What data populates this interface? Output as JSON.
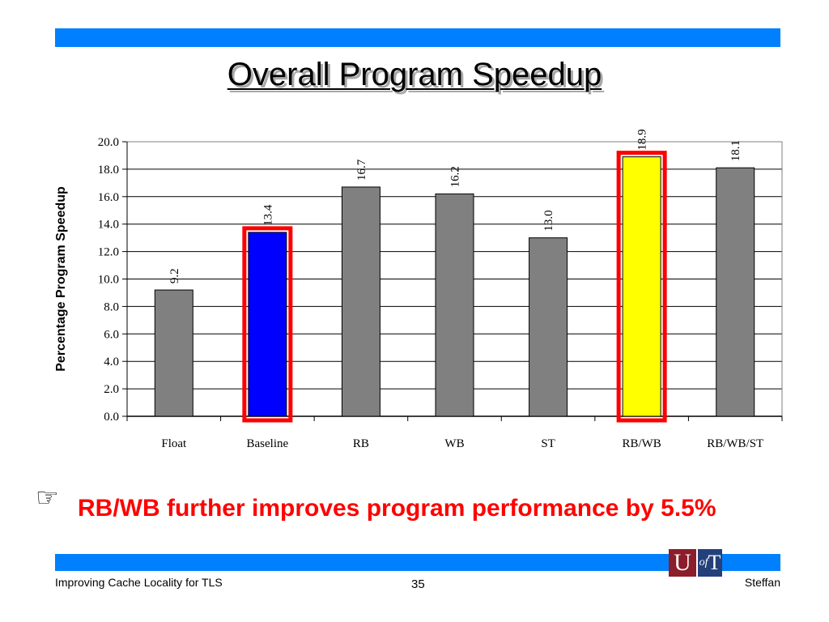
{
  "slide": {
    "title": "Overall Program Speedup",
    "bullet_icon": "pointing-hand-icon",
    "bullet_glyph": "☞",
    "bullet_text": "RB/WB further improves program performance by 5.5%",
    "footer_left": "Improving Cache Locality for TLS",
    "page_number": "35",
    "footer_right": "Steffan",
    "logo": {
      "letter_u": "U",
      "letter_of": "of",
      "letter_t": "T"
    },
    "colors": {
      "bar_accent": "#0080ff",
      "bullet_text": "#ff0000"
    }
  },
  "chart_data": {
    "type": "bar",
    "title": "",
    "xlabel": "",
    "ylabel": "Percentage Program Speedup",
    "ylim": [
      0,
      20
    ],
    "yticks": [
      "0.0",
      "2.0",
      "4.0",
      "6.0",
      "8.0",
      "10.0",
      "12.0",
      "14.0",
      "16.0",
      "18.0",
      "20.0"
    ],
    "categories": [
      "Float",
      "Baseline",
      "RB",
      "WB",
      "ST",
      "RB/WB",
      "RB/WB/ST"
    ],
    "values": [
      9.2,
      13.4,
      16.7,
      16.2,
      13.0,
      18.9,
      18.1
    ],
    "value_labels": [
      "9.2",
      "13.4",
      "16.7",
      "16.2",
      "13.0",
      "18.9",
      "18.1"
    ],
    "bar_colors": [
      "#808080",
      "#0000ff",
      "#808080",
      "#808080",
      "#808080",
      "#ffff00",
      "#808080"
    ],
    "highlighted": [
      "Baseline",
      "RB/WB"
    ],
    "highlight_color": "#ff0000",
    "grid": true,
    "legend": "none"
  }
}
